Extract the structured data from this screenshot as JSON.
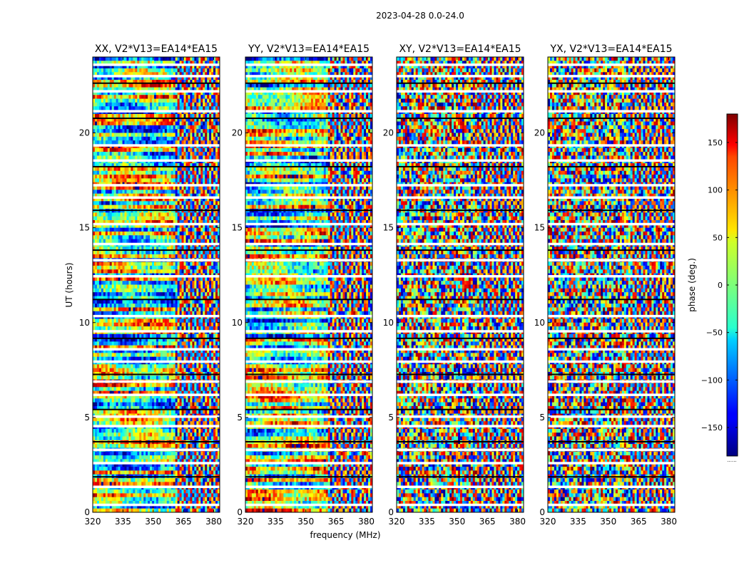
{
  "chart_data": {
    "type": "heatmap",
    "title": "2023-04-28 0.0-24.0",
    "xlabel": "frequency (MHz)",
    "ylabel": "UT (hours)",
    "xlim": [
      320,
      383
    ],
    "ylim": [
      0,
      24
    ],
    "x_ticks": [
      320,
      335,
      350,
      365,
      380
    ],
    "y_ticks": [
      0,
      5,
      10,
      15,
      20
    ],
    "panels": [
      {
        "name": "xx",
        "title": "XX, V2*V13=EA14*EA15"
      },
      {
        "name": "yy",
        "title": "YY, V2*V13=EA14*EA15"
      },
      {
        "name": "xy",
        "title": "XY, V2*V13=EA14*EA15"
      },
      {
        "name": "yx",
        "title": "YX, V2*V13=EA14*EA15"
      }
    ],
    "colorbar": {
      "label": "phase (deg.)",
      "range": [
        -180,
        180
      ],
      "ticks": [
        150,
        100,
        50,
        0,
        -50,
        -100,
        -150
      ],
      "tick_labels": [
        "150",
        "100",
        "50",
        "0",
        "−50",
        "−100",
        "−150"
      ],
      "colormap": "jet",
      "footer": "......"
    },
    "flagged_utc_hours": [
      0.4,
      1.35,
      1.85,
      2.6,
      3.3,
      3.7,
      4.55,
      5.05,
      5.4,
      6.2,
      6.9,
      7.25,
      7.95,
      8.6,
      9.15,
      9.55,
      10.35,
      11.2,
      12.45,
      13.3,
      13.8,
      14.15,
      15.2,
      15.9,
      16.6,
      17.25,
      18.2,
      18.55,
      19.35,
      20.75,
      21.15,
      22.2,
      22.6,
      23.0,
      23.6
    ]
  }
}
